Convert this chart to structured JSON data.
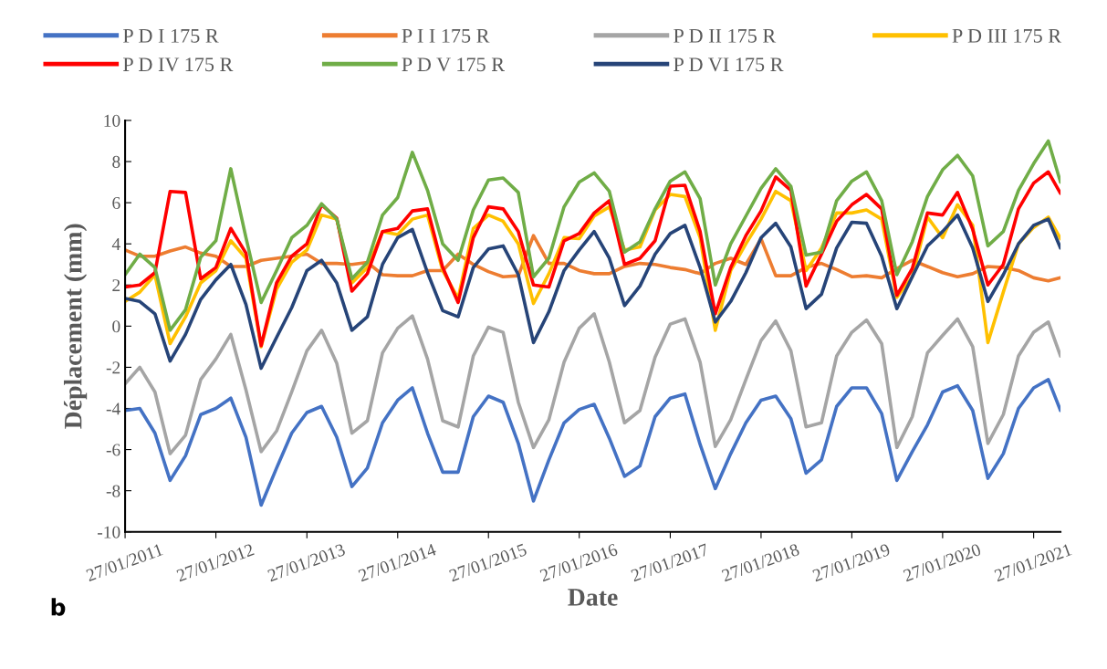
{
  "chart_data": {
    "type": "line",
    "xlabel": "Date",
    "ylabel": "Déplacement (mm)",
    "annotations": [
      "b"
    ],
    "x": [
      "2011-01-27",
      "2011-03-27",
      "2011-05-27",
      "2011-07-27",
      "2011-09-27",
      "2011-11-27",
      "2012-01-27",
      "2012-03-27",
      "2012-05-27",
      "2012-07-27",
      "2012-09-27",
      "2012-11-27",
      "2013-01-27",
      "2013-03-27",
      "2013-05-27",
      "2013-07-27",
      "2013-09-27",
      "2013-11-27",
      "2014-01-27",
      "2014-03-27",
      "2014-05-27",
      "2014-07-27",
      "2014-09-27",
      "2014-11-27",
      "2015-01-27",
      "2015-03-27",
      "2015-05-27",
      "2015-07-27",
      "2015-09-27",
      "2015-11-27",
      "2016-01-27",
      "2016-03-27",
      "2016-05-27",
      "2016-07-27",
      "2016-09-27",
      "2016-11-27",
      "2017-01-27",
      "2017-03-27",
      "2017-05-27",
      "2017-07-27",
      "2017-09-27",
      "2017-11-27",
      "2018-01-27",
      "2018-03-27",
      "2018-05-27",
      "2018-07-27",
      "2018-09-27",
      "2018-11-27",
      "2019-01-27",
      "2019-03-27",
      "2019-05-27",
      "2019-07-27",
      "2019-09-27",
      "2019-11-27",
      "2020-01-27",
      "2020-03-27",
      "2020-05-27",
      "2020-07-27",
      "2020-09-27",
      "2020-11-27",
      "2021-01-27",
      "2021-03-27",
      "2021-05-15"
    ],
    "series": [
      {
        "name": "P D I 175 R",
        "color": "#4472c4",
        "values": [
          -4.1,
          -4.0,
          -5.2,
          -7.5,
          -6.3,
          -4.3,
          -4.0,
          -3.5,
          -5.4,
          -8.7,
          -6.9,
          -5.2,
          -4.2,
          -3.9,
          -5.4,
          -7.8,
          -6.9,
          -4.7,
          -3.6,
          -3.0,
          -5.2,
          -7.1,
          -7.1,
          -4.4,
          -3.4,
          -3.7,
          -5.7,
          -8.5,
          -6.5,
          -4.7,
          -4.05,
          -3.8,
          -5.45,
          -7.3,
          -6.8,
          -4.4,
          -3.5,
          -3.3,
          -5.75,
          -7.9,
          -6.2,
          -4.7,
          -3.6,
          -3.4,
          -4.5,
          -7.15,
          -6.5,
          -3.9,
          -3.0,
          -3.0,
          -4.25,
          -7.5,
          -6.1,
          -4.8,
          -3.2,
          -2.9,
          -4.1,
          -7.4,
          -6.2,
          -4.0,
          -3.0,
          -2.6,
          -4.1
        ]
      },
      {
        "name": "P I I 175 R",
        "color": "#ed7d31",
        "values": [
          3.7,
          3.4,
          3.4,
          3.65,
          3.85,
          3.55,
          3.4,
          2.9,
          2.9,
          3.2,
          3.3,
          3.4,
          3.5,
          3.05,
          3.05,
          3.0,
          3.1,
          2.5,
          2.45,
          2.45,
          2.7,
          2.7,
          3.5,
          3.0,
          2.65,
          2.4,
          2.45,
          4.4,
          3.05,
          3.05,
          2.7,
          2.55,
          2.55,
          2.9,
          3.05,
          3.0,
          2.85,
          2.75,
          2.55,
          3.05,
          3.3,
          3.0,
          4.25,
          2.45,
          2.45,
          2.85,
          3.05,
          2.75,
          2.4,
          2.45,
          2.35,
          2.8,
          3.2,
          2.9,
          2.6,
          2.4,
          2.55,
          2.9,
          2.85,
          2.7,
          2.35,
          2.2,
          2.35
        ]
      },
      {
        "name": "P D II 175 R",
        "color": "#a5a5a5",
        "values": [
          -2.8,
          -2.0,
          -3.2,
          -6.2,
          -5.3,
          -2.6,
          -1.6,
          -0.4,
          -3.1,
          -6.1,
          -5.1,
          -3.2,
          -1.2,
          -0.2,
          -1.8,
          -5.2,
          -4.6,
          -1.3,
          -0.1,
          0.5,
          -1.6,
          -4.6,
          -4.9,
          -1.45,
          -0.05,
          -0.3,
          -3.7,
          -5.9,
          -4.55,
          -1.75,
          -0.1,
          0.6,
          -1.75,
          -4.7,
          -4.1,
          -1.5,
          0.1,
          0.35,
          -1.75,
          -5.85,
          -4.55,
          -2.6,
          -0.7,
          0.25,
          -1.2,
          -4.9,
          -4.7,
          -1.45,
          -0.3,
          0.3,
          -0.85,
          -5.9,
          -4.4,
          -1.3,
          -0.45,
          0.35,
          -1.0,
          -5.7,
          -4.3,
          -1.45,
          -0.3,
          0.2,
          -1.45
        ]
      },
      {
        "name": "P D III 175 R",
        "color": "#ffc000",
        "values": [
          1.2,
          1.65,
          2.5,
          -0.85,
          0.45,
          2.1,
          2.7,
          4.15,
          3.3,
          -1.0,
          1.8,
          3.1,
          3.7,
          5.4,
          5.2,
          2.1,
          2.85,
          4.6,
          4.45,
          5.2,
          5.4,
          2.7,
          1.35,
          4.75,
          5.4,
          5.1,
          4.0,
          1.1,
          2.55,
          4.3,
          4.25,
          5.35,
          5.8,
          3.7,
          3.85,
          5.65,
          6.4,
          6.3,
          4.3,
          -0.2,
          2.7,
          4.0,
          5.2,
          6.55,
          6.1,
          2.7,
          3.8,
          5.5,
          5.5,
          5.65,
          5.2,
          1.4,
          2.4,
          5.3,
          4.3,
          5.9,
          4.9,
          -0.8,
          1.65,
          4.0,
          4.8,
          5.3,
          4.25
        ]
      },
      {
        "name": "P D IV 175 R",
        "color": "#ff0000",
        "values": [
          1.9,
          2.0,
          2.6,
          6.55,
          6.5,
          2.3,
          2.85,
          4.75,
          3.55,
          -0.95,
          2.1,
          3.4,
          4.0,
          5.9,
          5.25,
          1.7,
          2.55,
          4.6,
          4.75,
          5.6,
          5.7,
          2.85,
          1.15,
          4.3,
          5.8,
          5.7,
          4.6,
          2.0,
          1.9,
          4.15,
          4.5,
          5.5,
          6.1,
          3.0,
          3.3,
          4.15,
          6.8,
          6.85,
          4.6,
          0.6,
          2.85,
          4.4,
          5.6,
          7.25,
          6.6,
          1.95,
          3.5,
          5.1,
          5.9,
          6.4,
          5.7,
          1.5,
          2.8,
          5.5,
          5.4,
          6.5,
          4.7,
          2.0,
          3.0,
          5.7,
          6.95,
          7.5,
          6.45
        ]
      },
      {
        "name": "P D V 175 R",
        "color": "#70ad47",
        "values": [
          2.5,
          3.5,
          2.85,
          -0.2,
          0.8,
          3.35,
          4.15,
          7.65,
          4.3,
          1.15,
          2.7,
          4.3,
          4.9,
          5.95,
          5.2,
          2.3,
          3.1,
          5.4,
          6.25,
          8.45,
          6.6,
          4.0,
          3.2,
          5.65,
          7.1,
          7.2,
          6.5,
          2.4,
          3.3,
          5.8,
          7.0,
          7.45,
          6.55,
          3.6,
          4.1,
          5.7,
          7.05,
          7.5,
          6.2,
          2.0,
          4.0,
          5.35,
          6.7,
          7.65,
          6.8,
          3.45,
          3.6,
          6.1,
          7.05,
          7.5,
          6.1,
          2.5,
          4.1,
          6.3,
          7.6,
          8.3,
          7.3,
          3.9,
          4.6,
          6.6,
          7.9,
          9.0,
          7.0
        ]
      },
      {
        "name": "P D VI 175 R",
        "color": "#264478",
        "values": [
          1.35,
          1.2,
          0.6,
          -1.7,
          -0.4,
          1.3,
          2.25,
          3.0,
          1.05,
          -2.05,
          -0.55,
          0.9,
          2.7,
          3.2,
          2.1,
          -0.2,
          0.45,
          3.0,
          4.3,
          4.7,
          2.6,
          0.75,
          0.45,
          2.85,
          3.75,
          3.9,
          2.5,
          -0.8,
          0.7,
          2.7,
          3.7,
          4.6,
          3.3,
          1.0,
          1.95,
          3.5,
          4.5,
          4.9,
          2.85,
          0.2,
          1.2,
          2.6,
          4.3,
          5.0,
          3.85,
          0.85,
          1.55,
          3.8,
          5.05,
          5.0,
          3.4,
          0.85,
          2.4,
          3.9,
          4.6,
          5.4,
          3.8,
          1.2,
          2.5,
          4.0,
          4.9,
          5.2,
          3.8
        ]
      }
    ],
    "xlim": [
      "2011-01-27",
      "2021-05-15"
    ],
    "xticks": [
      {
        "value": "2011-01-27",
        "label": "27/01/2011"
      },
      {
        "value": "2012-01-27",
        "label": "27/01/2012"
      },
      {
        "value": "2013-01-27",
        "label": "27/01/2013"
      },
      {
        "value": "2014-01-27",
        "label": "27/01/2014"
      },
      {
        "value": "2015-01-27",
        "label": "27/01/2015"
      },
      {
        "value": "2016-01-27",
        "label": "27/01/2016"
      },
      {
        "value": "2017-01-27",
        "label": "27/01/2017"
      },
      {
        "value": "2018-01-27",
        "label": "27/01/2018"
      },
      {
        "value": "2019-01-27",
        "label": "27/01/2019"
      },
      {
        "value": "2020-01-27",
        "label": "27/01/2020"
      },
      {
        "value": "2021-01-27",
        "label": "27/01/2021"
      }
    ],
    "ylim": [
      -10,
      10
    ],
    "yticks": [
      -10,
      -8,
      -6,
      -4,
      -2,
      0,
      2,
      4,
      6,
      8,
      10
    ],
    "grid": false,
    "legend": "top",
    "marker": "none",
    "line_style": "solid"
  }
}
